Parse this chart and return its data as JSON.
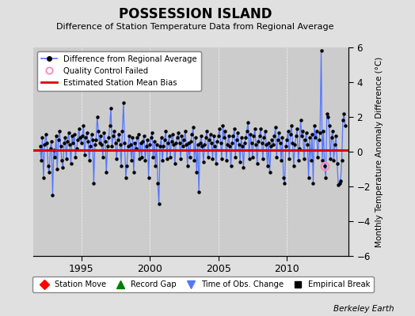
{
  "title": "POSSESSION ISLAND",
  "subtitle": "Difference of Station Temperature Data from Regional Average",
  "ylabel": "Monthly Temperature Anomaly Difference (°C)",
  "credit": "Berkeley Earth",
  "ylim": [
    -6,
    6
  ],
  "xlim": [
    1991.5,
    2014.5
  ],
  "yticks": [
    -6,
    -4,
    -2,
    0,
    2,
    4,
    6
  ],
  "xticks": [
    1995,
    2000,
    2005,
    2010
  ],
  "bias_value": 0.1,
  "bg_color": "#e0e0e0",
  "plot_bg_color": "#cccccc",
  "line_color": "#5577ff",
  "dot_color": "#000000",
  "bias_color": "#dd0000",
  "qc_color": "#ff88bb",
  "data_x": [
    1992.0,
    1992.083,
    1992.167,
    1992.25,
    1992.333,
    1992.417,
    1992.5,
    1992.583,
    1992.667,
    1992.75,
    1992.833,
    1992.917,
    1993.0,
    1993.083,
    1993.167,
    1993.25,
    1993.333,
    1993.417,
    1993.5,
    1993.583,
    1993.667,
    1993.75,
    1993.833,
    1993.917,
    1994.0,
    1994.083,
    1994.167,
    1994.25,
    1994.333,
    1994.417,
    1994.5,
    1994.583,
    1994.667,
    1994.75,
    1994.833,
    1994.917,
    1995.0,
    1995.083,
    1995.167,
    1995.25,
    1995.333,
    1995.417,
    1995.5,
    1995.583,
    1995.667,
    1995.75,
    1995.833,
    1995.917,
    1996.0,
    1996.083,
    1996.167,
    1996.25,
    1996.333,
    1996.417,
    1996.5,
    1996.583,
    1996.667,
    1996.75,
    1996.833,
    1996.917,
    1997.0,
    1997.083,
    1997.167,
    1997.25,
    1997.333,
    1997.417,
    1997.5,
    1997.583,
    1997.667,
    1997.75,
    1997.833,
    1997.917,
    1998.0,
    1998.083,
    1998.167,
    1998.25,
    1998.333,
    1998.417,
    1998.5,
    1998.583,
    1998.667,
    1998.75,
    1998.833,
    1998.917,
    1999.0,
    1999.083,
    1999.167,
    1999.25,
    1999.333,
    1999.417,
    1999.5,
    1999.583,
    1999.667,
    1999.75,
    1999.833,
    1999.917,
    2000.0,
    2000.083,
    2000.167,
    2000.25,
    2000.333,
    2000.417,
    2000.5,
    2000.583,
    2000.667,
    2000.75,
    2000.833,
    2000.917,
    2001.0,
    2001.083,
    2001.167,
    2001.25,
    2001.333,
    2001.417,
    2001.5,
    2001.583,
    2001.667,
    2001.75,
    2001.833,
    2001.917,
    2002.0,
    2002.083,
    2002.167,
    2002.25,
    2002.333,
    2002.417,
    2002.5,
    2002.583,
    2002.667,
    2002.75,
    2002.833,
    2002.917,
    2003.0,
    2003.083,
    2003.167,
    2003.25,
    2003.333,
    2003.417,
    2003.5,
    2003.583,
    2003.667,
    2003.75,
    2003.833,
    2003.917,
    2004.0,
    2004.083,
    2004.167,
    2004.25,
    2004.333,
    2004.417,
    2004.5,
    2004.583,
    2004.667,
    2004.75,
    2004.833,
    2004.917,
    2005.0,
    2005.083,
    2005.167,
    2005.25,
    2005.333,
    2005.417,
    2005.5,
    2005.583,
    2005.667,
    2005.75,
    2005.833,
    2005.917,
    2006.0,
    2006.083,
    2006.167,
    2006.25,
    2006.333,
    2006.417,
    2006.5,
    2006.583,
    2006.667,
    2006.75,
    2006.833,
    2006.917,
    2007.0,
    2007.083,
    2007.167,
    2007.25,
    2007.333,
    2007.417,
    2007.5,
    2007.583,
    2007.667,
    2007.75,
    2007.833,
    2007.917,
    2008.0,
    2008.083,
    2008.167,
    2008.25,
    2008.333,
    2008.417,
    2008.5,
    2008.583,
    2008.667,
    2008.75,
    2008.833,
    2008.917,
    2009.0,
    2009.083,
    2009.167,
    2009.25,
    2009.333,
    2009.417,
    2009.5,
    2009.583,
    2009.667,
    2009.75,
    2009.833,
    2009.917,
    2010.0,
    2010.083,
    2010.167,
    2010.25,
    2010.333,
    2010.417,
    2010.5,
    2010.583,
    2010.667,
    2010.75,
    2010.833,
    2010.917,
    2011.0,
    2011.083,
    2011.167,
    2011.25,
    2011.333,
    2011.417,
    2011.5,
    2011.583,
    2011.667,
    2011.75,
    2011.833,
    2011.917,
    2012.0,
    2012.083,
    2012.167,
    2012.25,
    2012.333,
    2012.417,
    2012.5,
    2012.583,
    2012.667,
    2012.75,
    2012.833,
    2012.917,
    2013.0,
    2013.083,
    2013.167,
    2013.25,
    2013.333,
    2013.417,
    2013.5,
    2013.583,
    2013.667,
    2013.75,
    2013.833,
    2013.917,
    2014.0,
    2014.083,
    2014.167,
    2014.25
  ],
  "data_y": [
    0.3,
    -0.5,
    0.8,
    -1.5,
    0.4,
    1.0,
    0.5,
    -0.8,
    -1.2,
    0.2,
    0.6,
    -2.5,
    0.1,
    -0.3,
    0.9,
    -1.0,
    0.7,
    1.2,
    0.3,
    -0.5,
    -0.9,
    0.5,
    0.8,
    -0.4,
    0.6,
    1.1,
    0.4,
    -0.7,
    0.9,
    0.5,
    1.0,
    -0.3,
    0.2,
    0.7,
    1.3,
    0.8,
    0.5,
    0.9,
    1.5,
    -0.2,
    0.8,
    1.1,
    0.6,
    -0.5,
    0.3,
    1.0,
    0.7,
    -1.8,
    0.4,
    0.7,
    2.0,
    1.2,
    0.5,
    0.9,
    0.4,
    -0.3,
    1.1,
    0.6,
    -1.2,
    0.3,
    0.8,
    1.5,
    2.5,
    0.3,
    0.9,
    1.2,
    0.5,
    -0.4,
    0.7,
    1.0,
    0.4,
    -0.8,
    1.2,
    2.8,
    0.5,
    -1.5,
    -0.8,
    0.3,
    0.9,
    0.4,
    -0.5,
    0.8,
    -1.2,
    0.5,
    0.2,
    0.8,
    1.0,
    -0.4,
    0.5,
    -0.3,
    0.6,
    0.9,
    -0.5,
    0.3,
    0.7,
    -1.5,
    0.4,
    0.8,
    1.1,
    -0.3,
    0.6,
    -0.8,
    0.4,
    -1.8,
    -3.0,
    0.3,
    0.8,
    -0.5,
    0.3,
    0.7,
    1.2,
    -0.4,
    0.5,
    0.9,
    -0.3,
    0.6,
    1.0,
    0.4,
    -0.7,
    0.5,
    0.8,
    1.1,
    0.5,
    -0.4,
    0.9,
    0.3,
    0.7,
    1.2,
    0.4,
    -0.8,
    0.5,
    -0.3,
    0.6,
    1.0,
    1.4,
    -0.5,
    0.8,
    -1.2,
    0.4,
    -2.3,
    0.5,
    0.9,
    0.3,
    -0.6,
    0.4,
    0.8,
    1.2,
    -0.3,
    0.7,
    1.0,
    0.5,
    -0.4,
    0.9,
    0.3,
    -0.7,
    0.6,
    0.9,
    1.3,
    0.5,
    -0.4,
    1.5,
    0.8,
    1.2,
    -0.5,
    0.4,
    0.9,
    0.3,
    -0.8,
    0.5,
    0.9,
    1.3,
    -0.3,
    0.7,
    1.1,
    0.4,
    -0.6,
    0.8,
    0.3,
    -0.9,
    0.5,
    0.8,
    1.2,
    1.7,
    -0.4,
    1.0,
    0.5,
    -0.3,
    0.9,
    1.3,
    0.4,
    -0.7,
    0.6,
    0.9,
    1.3,
    0.5,
    -0.4,
    0.8,
    1.2,
    0.4,
    -0.8,
    0.5,
    -1.2,
    0.3,
    0.7,
    0.4,
    0.9,
    1.4,
    -0.3,
    0.7,
    1.1,
    0.5,
    -0.5,
    0.8,
    -1.5,
    -1.8,
    0.3,
    0.7,
    1.2,
    -0.4,
    1.0,
    1.5,
    0.5,
    -0.8,
    0.4,
    0.9,
    1.3,
    -0.5,
    0.2,
    1.8,
    0.9,
    1.2,
    -0.4,
    0.7,
    1.1,
    0.4,
    -1.5,
    0.8,
    -0.5,
    1.0,
    -1.8,
    1.5,
    0.8,
    1.2,
    -0.3,
    0.7,
    1.1,
    5.8,
    -0.5,
    1.2,
    -0.8,
    -1.5,
    2.2,
    2.0,
    1.5,
    -0.4,
    0.8,
    1.2,
    -0.5,
    0.4,
    0.9,
    -0.7,
    -1.9,
    -1.8,
    -1.7,
    -0.5,
    1.8,
    2.2,
    1.5
  ],
  "qc_x": [
    2012.75
  ],
  "qc_y": [
    -0.8
  ]
}
